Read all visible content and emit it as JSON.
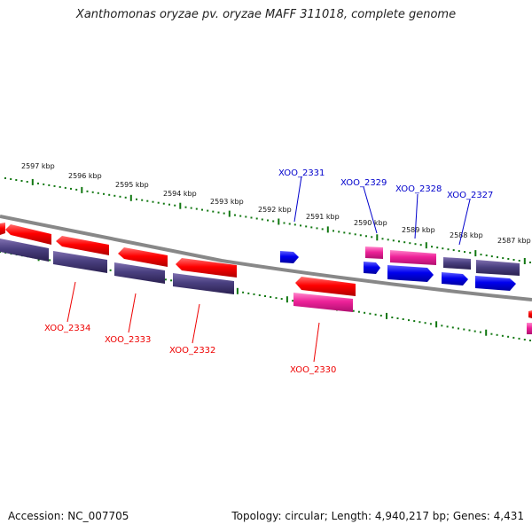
{
  "title": "Xanthomonas oryzae pv. oryzae MAFF 311018, complete genome",
  "footer": {
    "accession": "Accession: NC_007705",
    "summary": "Topology: circular; Length: 4,940,217 bp; Genes: 4,431"
  },
  "colors": {
    "backbone": "#888888",
    "tick": "#117711",
    "forward_gene": "#ff0000",
    "reverse_gene": "#0000ee",
    "rna_gene": "#ee2299",
    "ortholog_band": "#4a4080",
    "label_forward": "#ee0000",
    "label_reverse": "#0000cc"
  },
  "scale_labels": [
    "2597 kbp",
    "2596 kbp",
    "2595 kbp",
    "2594 kbp",
    "2593 kbp",
    "2592 kbp",
    "2591 kbp",
    "2590 kbp",
    "2589 kbp",
    "2588 kbp",
    "2587 kbp"
  ],
  "gene_labels": [
    {
      "name": "XOO_2331",
      "strand": "reverse"
    },
    {
      "name": "XOO_2329",
      "strand": "reverse"
    },
    {
      "name": "XOO_2328",
      "strand": "reverse"
    },
    {
      "name": "XOO_2327",
      "strand": "reverse"
    },
    {
      "name": "XOO_2334",
      "strand": "forward"
    },
    {
      "name": "XOO_2333",
      "strand": "forward"
    },
    {
      "name": "XOO_2332",
      "strand": "forward"
    },
    {
      "name": "XOO_2330",
      "strand": "forward"
    }
  ]
}
